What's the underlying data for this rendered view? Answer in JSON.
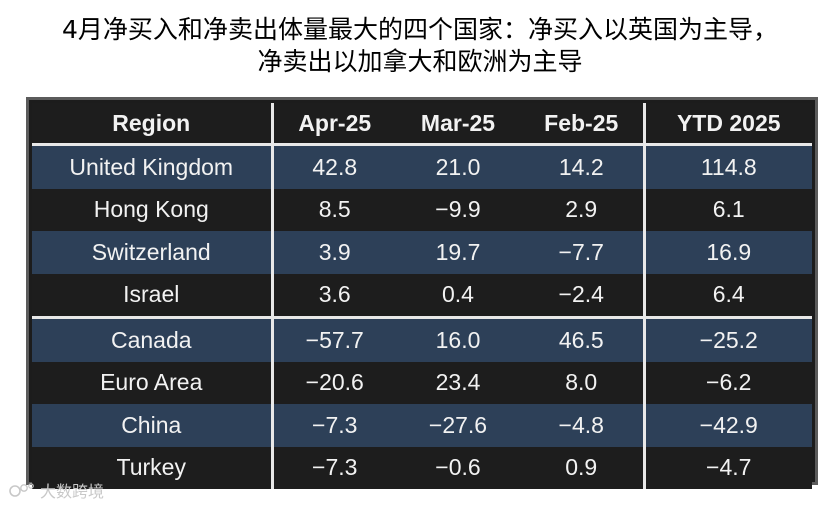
{
  "title": {
    "line1": "4月净买入和净卖出体量最大的四个国家：净买入以英国为主导，",
    "line2": "净卖出以加拿大和欧洲为主导"
  },
  "table": {
    "headers": [
      "Region",
      "Apr-25",
      "Mar-25",
      "Feb-25",
      "YTD 2025"
    ],
    "rows": [
      [
        "United Kingdom",
        "42.8",
        "21.0",
        "14.2",
        "114.8"
      ],
      [
        "Hong Kong",
        "8.5",
        "−9.9",
        "2.9",
        "6.1"
      ],
      [
        "Switzerland",
        "3.9",
        "19.7",
        "−7.7",
        "16.9"
      ],
      [
        "Israel",
        "3.6",
        "0.4",
        "−2.4",
        "6.4"
      ],
      [
        "Canada",
        "−57.7",
        "16.0",
        "46.5",
        "−25.2"
      ],
      [
        "Euro Area",
        "−20.6",
        "23.4",
        "8.0",
        "−6.2"
      ],
      [
        "China",
        "−7.3",
        "−27.6",
        "−4.8",
        "−42.9"
      ],
      [
        "Turkey",
        "−7.3",
        "−0.6",
        "0.9",
        "−4.7"
      ]
    ]
  },
  "watermark": {
    "text": "大数跨境",
    "icon": "brand-logo-icon"
  },
  "colors": {
    "row_blue": "#2d4058",
    "row_dark": "#1d1d1d",
    "text": "#f2f2f2",
    "separator": "#e8e8e8"
  }
}
